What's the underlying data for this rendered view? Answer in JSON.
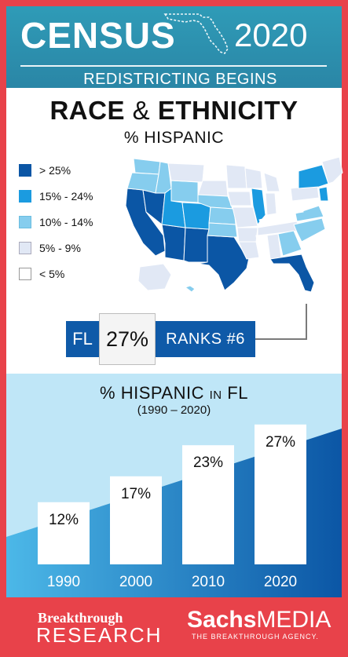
{
  "header": {
    "title": "CENSUS",
    "year": "2020",
    "subtitle": "REDISTRICTING BEGINS"
  },
  "section": {
    "title_bold1": "RACE",
    "title_amp": "&",
    "title_bold2": "ETHNICITY",
    "map_title": "% HISPANIC"
  },
  "legend": [
    {
      "label": "> 25%",
      "color": "#0b56a5"
    },
    {
      "label": "15% - 24%",
      "color": "#1b9be0"
    },
    {
      "label": "10% - 14%",
      "color": "#86cdee"
    },
    {
      "label": "5% - 9%",
      "color": "#e1e8f5"
    },
    {
      "label": "< 5%",
      "color": "#ffffff"
    }
  ],
  "callout": {
    "state": "FL",
    "percent": "27%",
    "rank": "RANKS #6"
  },
  "chart_data": {
    "type": "bar",
    "title_main": "% HISPANIC",
    "title_small": "IN",
    "title_end": "FL",
    "subtitle": "(1990 – 2020)",
    "categories": [
      "1990",
      "2000",
      "2010",
      "2020"
    ],
    "values": [
      12,
      17,
      23,
      27
    ],
    "value_labels": [
      "12%",
      "17%",
      "23%",
      "27%"
    ],
    "ylim": [
      0,
      30
    ],
    "grid": false,
    "legend": "none",
    "bar_color": "#ffffff",
    "background": "#bfe6f7"
  },
  "footer": {
    "brand1_top": "Breakthrough",
    "brand1_bottom": "RESEARCH",
    "brand2_bold": "Sachs",
    "brand2_light": "MEDIA",
    "brand2_tagline": "THE BREAKTHROUGH AGENCY."
  },
  "colors": {
    "frame": "#e8424a",
    "header": "#2f9bb7",
    "accent_dark_blue": "#0f5aa8"
  }
}
